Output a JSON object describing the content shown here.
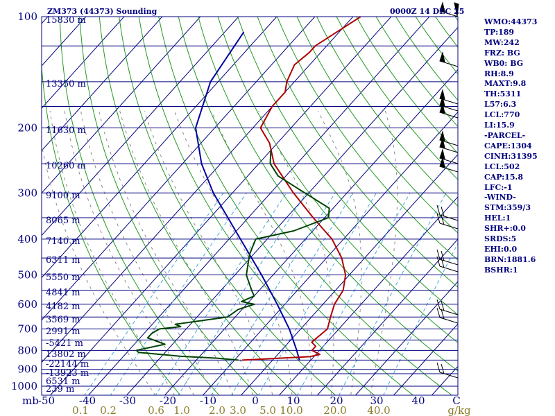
{
  "header": {
    "station": "ZM373 (44373) Sounding",
    "time": "0000Z 14 DEC 25"
  },
  "indices": [
    "WMO:44373",
    "TP:189",
    "MW:242",
    "FRZ: BG",
    "WB0: BG",
    "RH:8.9",
    "MAXT:9.8",
    "TH:5311",
    "L57:6.3",
    "LCL:770",
    "LI:15.9",
    "-PARCEL-",
    "CAPE:1304",
    "CINH:31395",
    "LCL:502",
    "CAP:15.8",
    "LFC:-1",
    "-WIND-",
    "STM:359/3",
    "HEL:1",
    "SHR+:0.0",
    "SRDS:5",
    "EHI:0.0",
    "BRN:1881.6",
    "BSHR:1"
  ],
  "colors": {
    "axis": "#00007f",
    "isobar": "#00007f",
    "isotherm": "#00007f",
    "dry_adiabat": "#229922",
    "moist_adiabat": "#7f7f7f",
    "mixing_ratio": "#44aadd",
    "temperature": "#b00000",
    "dewpoint": "#004400",
    "parcel": "#00009f",
    "mixing_label": "#8b7d2a",
    "wind": "#000000"
  },
  "chart_data": {
    "type": "skew-t",
    "pressure_levels": [
      100,
      200,
      300,
      400,
      500,
      600,
      700,
      800,
      900,
      1000
    ],
    "pressure_labels": [
      "100",
      "200",
      "300",
      "400",
      "500",
      "600",
      "700",
      "800",
      "900",
      "1000"
    ],
    "temperature_ticks": [
      "-50",
      "-40",
      "-30",
      "-20",
      "-10",
      "0",
      "10",
      "20",
      "30",
      "40",
      "C"
    ],
    "temperature_unit_prefix": "mb",
    "mixing_ratio_labels": [
      "0.1",
      "0.2",
      "0.6",
      "1.0",
      "2.0",
      "3.0",
      "5.0",
      "10.0",
      "20.0",
      "40.0",
      "g/kg"
    ],
    "height_labels": [
      "15830 m",
      "13350 m",
      "11630 m",
      "10260 m",
      "9100 m",
      "8065 m",
      "7140 m",
      "6311 m",
      "5550 m",
      "4841 m",
      "4182 m",
      "3569 m",
      "2991 m",
      "-5421 m",
      "13802 m",
      "-22144 m",
      "-13923 m",
      "6531 m",
      "239 m"
    ],
    "temperature_profile": [
      [
        850,
        -8
      ],
      [
        832,
        9
      ],
      [
        820,
        11
      ],
      [
        800,
        8
      ],
      [
        780,
        8
      ],
      [
        760,
        6
      ],
      [
        700,
        7
      ],
      [
        650,
        5
      ],
      [
        600,
        3
      ],
      [
        550,
        2
      ],
      [
        500,
        -1
      ],
      [
        450,
        -6
      ],
      [
        400,
        -13
      ],
      [
        350,
        -23
      ],
      [
        300,
        -34
      ],
      [
        250,
        -46
      ],
      [
        220,
        -52
      ],
      [
        200,
        -58
      ],
      [
        175,
        -60
      ],
      [
        160,
        -60
      ],
      [
        150,
        -62
      ],
      [
        135,
        -64
      ],
      [
        125,
        -63
      ],
      [
        120,
        -63
      ],
      [
        100,
        -58
      ]
    ],
    "dewpoint_profile": [
      [
        850,
        -9
      ],
      [
        840,
        -15
      ],
      [
        830,
        -25
      ],
      [
        810,
        -37
      ],
      [
        800,
        -38
      ],
      [
        770,
        -32
      ],
      [
        740,
        -38
      ],
      [
        720,
        -38
      ],
      [
        700,
        -37
      ],
      [
        690,
        -32
      ],
      [
        680,
        -34
      ],
      [
        650,
        -22
      ],
      [
        620,
        -21
      ],
      [
        600,
        -18
      ],
      [
        590,
        -22
      ],
      [
        570,
        -20
      ],
      [
        550,
        -22
      ],
      [
        500,
        -27
      ],
      [
        440,
        -31
      ],
      [
        400,
        -33
      ],
      [
        380,
        -25
      ],
      [
        350,
        -19
      ],
      [
        330,
        -21
      ],
      [
        300,
        -31
      ],
      [
        270,
        -42
      ],
      [
        250,
        -47
      ],
      [
        230,
        -50
      ]
    ],
    "parcel_profile": [
      [
        850,
        7
      ],
      [
        800,
        4
      ],
      [
        700,
        -3
      ],
      [
        600,
        -12
      ],
      [
        500,
        -23
      ],
      [
        400,
        -37
      ],
      [
        300,
        -55
      ],
      [
        250,
        -65
      ],
      [
        200,
        -75
      ],
      [
        150,
        -82
      ],
      [
        110,
        -85
      ]
    ],
    "dry_adiabat_potential_temps": [
      -20,
      -10,
      0,
      10,
      20,
      30,
      40,
      50,
      60,
      70,
      80,
      90,
      100,
      110,
      120,
      130,
      140,
      150,
      160,
      170,
      180,
      190,
      200,
      210,
      220
    ],
    "mixing_ratio_values": [
      0.1,
      0.2,
      0.6,
      1,
      2,
      3,
      5,
      10,
      20,
      40
    ]
  }
}
